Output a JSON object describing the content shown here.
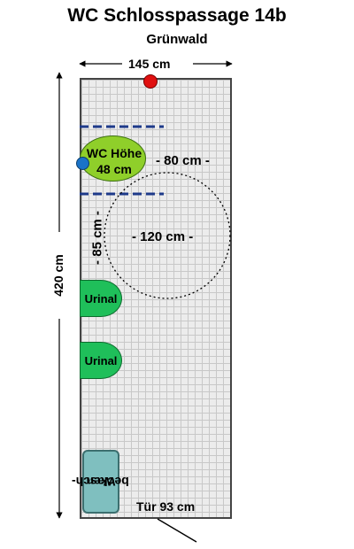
{
  "title": "WC Schlosspassage 14b",
  "subtitle": "Grünwald",
  "dimensions": {
    "width": "145 cm",
    "height": "420 cm",
    "turning_space": "- 120 cm -",
    "wc_side_clearance": "- 80 cm -",
    "wc_front_clearance": "- 85 cm -",
    "door": "Tür 93 cm"
  },
  "fixtures": {
    "wc_label_line1": "WC Höhe",
    "wc_label_line2": "48 cm",
    "urinal_1": "Urinal",
    "urinal_2": "Urinal",
    "sink_line1": "Wasch-",
    "sink_line2": "becken"
  },
  "colors": {
    "wc": "#8fcf2a",
    "urinal": "#1fbf5a",
    "sink": "#7fbfbf",
    "grab_bar": "#1e3a8a",
    "marker_red": "#e01010",
    "marker_blue": "#1a73c8"
  }
}
